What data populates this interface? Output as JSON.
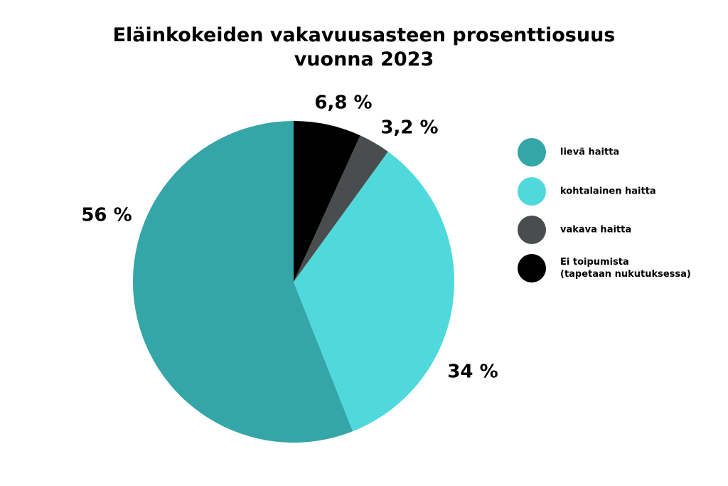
{
  "chart_data": {
    "type": "pie",
    "title": "Eläinkokeiden vakavuusasteen prosenttiosuus\nvuonna 2023",
    "categories": [
      "lievä haitta",
      "kohtalainen haitta",
      "vakava haitta",
      "Ei toipumista\n(tapetaan nukutuksessa)"
    ],
    "values": [
      56,
      34,
      3.2,
      6.8
    ],
    "value_labels": [
      "56 %",
      "34 %",
      "3,2 %",
      "6,8 %"
    ],
    "colors": [
      "#35a6a8",
      "#50d9dc",
      "#4a4d4e",
      "#000000"
    ]
  }
}
